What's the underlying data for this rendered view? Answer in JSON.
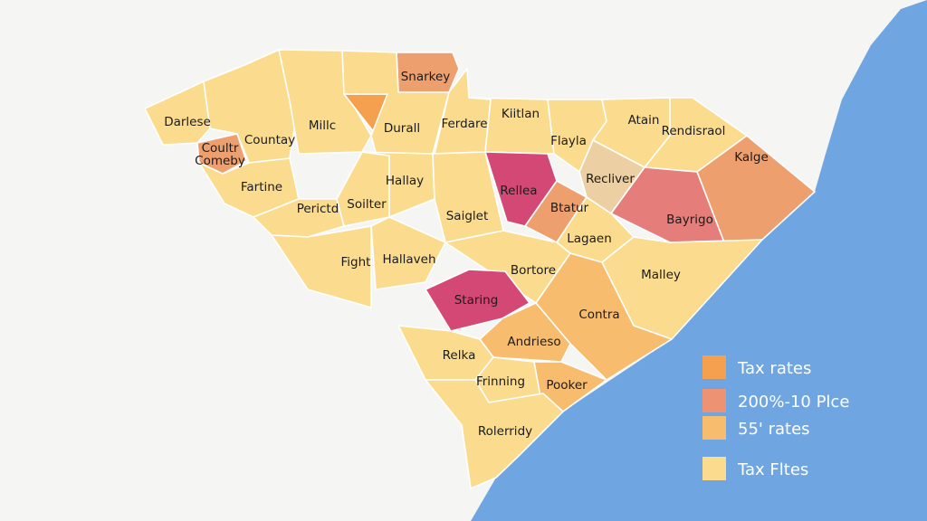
{
  "colors": {
    "background": "#f5f5f4",
    "ocean": "#6fa6e2",
    "yellow": "#fbdc8e",
    "light_orange": "#f8bc6e",
    "orange": "#f5a04e",
    "salmon": "#ee9f6e",
    "coral": "#e57d7a",
    "magenta": "#d44876",
    "tan": "#eccfa2",
    "border": "#ffffff"
  },
  "counties": [
    {
      "name": "Darlese",
      "fill": "yellow"
    },
    {
      "name": "Coultr Comeby",
      "fill": "salmon"
    },
    {
      "name": "Countay",
      "fill": "yellow"
    },
    {
      "name": "Millc",
      "fill": "yellow"
    },
    {
      "name": "",
      "fill": "orange"
    },
    {
      "name": "Snarkey",
      "fill": "salmon"
    },
    {
      "name": "Durall",
      "fill": "yellow"
    },
    {
      "name": "Ferdare",
      "fill": "yellow"
    },
    {
      "name": "Kiitlan",
      "fill": "yellow"
    },
    {
      "name": "Flayla",
      "fill": "yellow"
    },
    {
      "name": "Atain",
      "fill": "yellow"
    },
    {
      "name": "Rendisraol",
      "fill": "yellow"
    },
    {
      "name": "Kalge",
      "fill": "salmon"
    },
    {
      "name": "Fartine",
      "fill": "yellow"
    },
    {
      "name": "Perictd",
      "fill": "yellow"
    },
    {
      "name": "Soilter",
      "fill": "yellow"
    },
    {
      "name": "Hallay",
      "fill": "yellow"
    },
    {
      "name": "Saiglet",
      "fill": "yellow"
    },
    {
      "name": "Rellea",
      "fill": "magenta"
    },
    {
      "name": "Btatur",
      "fill": "salmon"
    },
    {
      "name": "Recliver",
      "fill": "tan"
    },
    {
      "name": "Bayrigo",
      "fill": "coral"
    },
    {
      "name": "Lagaen",
      "fill": "yellow"
    },
    {
      "name": "Fight",
      "fill": "yellow"
    },
    {
      "name": "Hallaveh",
      "fill": "yellow"
    },
    {
      "name": "Bortore",
      "fill": "yellow"
    },
    {
      "name": "Malley",
      "fill": "yellow"
    },
    {
      "name": "Staring",
      "fill": "magenta"
    },
    {
      "name": "Contra",
      "fill": "light_orange"
    },
    {
      "name": "Andrieso",
      "fill": "light_orange"
    },
    {
      "name": "Relka",
      "fill": "yellow"
    },
    {
      "name": "Frinning",
      "fill": "yellow"
    },
    {
      "name": "Pooker",
      "fill": "light_orange"
    },
    {
      "name": "Rolerridy",
      "fill": "yellow"
    }
  ],
  "legend": {
    "items": [
      {
        "label": "Tax rates",
        "color": "#f5a04e"
      },
      {
        "label": "200%-10 Plce",
        "color": "#ee9274"
      },
      {
        "label": "55' rates",
        "color": "#f8bc6e"
      },
      {
        "label": "Tax Fltes",
        "color": "#fbdc8e"
      }
    ]
  }
}
